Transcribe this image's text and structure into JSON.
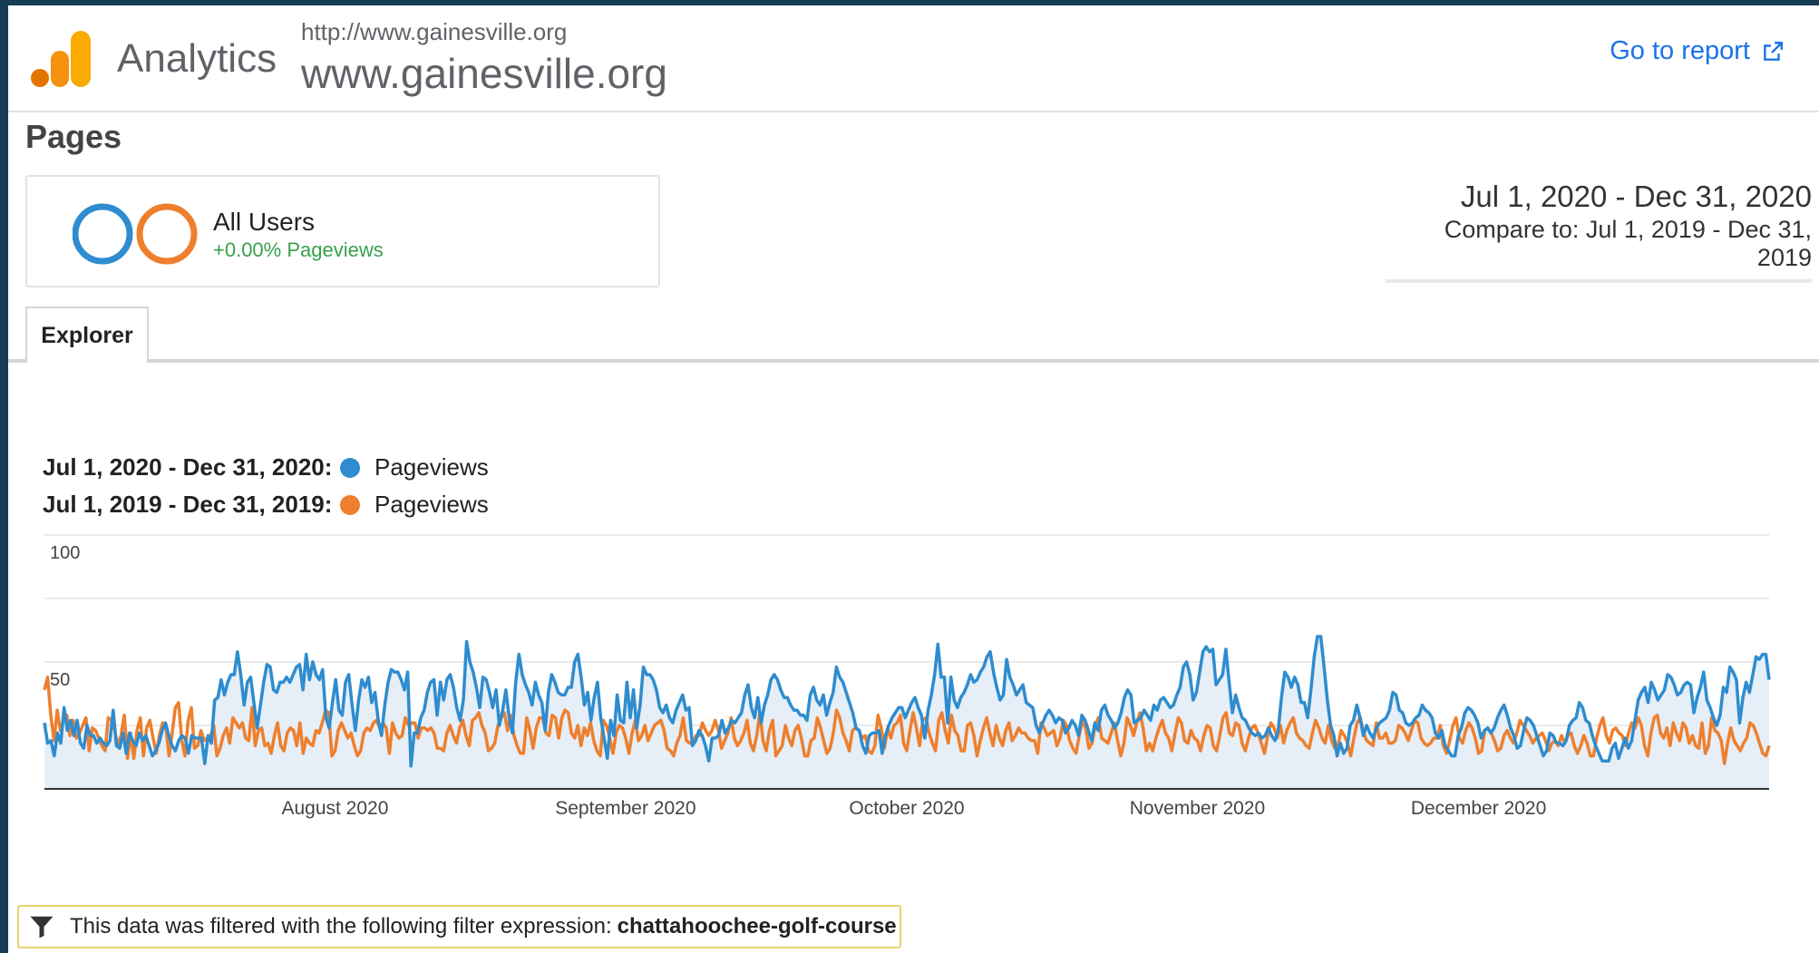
{
  "header": {
    "product": "Analytics",
    "property_url": "http://www.gainesville.org",
    "property_name": "www.gainesville.org",
    "go_to_report": "Go to report"
  },
  "page_title": "Pages",
  "segment": {
    "name": "All Users",
    "change": "+0.00% Pageviews"
  },
  "date_range": {
    "primary": "Jul 1, 2020 - Dec 31, 2020",
    "compare": "Compare to: Jul 1, 2019 - Dec 31, 2019"
  },
  "tabs": [
    {
      "label": "Explorer"
    }
  ],
  "legend": [
    {
      "range": "Jul 1, 2020 - Dec 31, 2020:",
      "metric": "Pageviews",
      "color": "#2e8ccf"
    },
    {
      "range": "Jul 1, 2019 - Dec 31, 2019:",
      "metric": "Pageviews",
      "color": "#ee7f2d"
    }
  ],
  "colors": {
    "current": "#2e8ccf",
    "compare": "#ee7f2d",
    "fill": "#e6eef7",
    "logo_dark": "#e37400",
    "logo_light": "#f9ab00"
  },
  "filter": {
    "text": "This data was filtered with the following filter expression:",
    "expression": "chattahoochee-golf-course"
  },
  "chart_data": {
    "type": "line",
    "title": "",
    "xlabel": "",
    "ylabel": "",
    "ylim": [
      0,
      100
    ],
    "y_ticks": [
      "100",
      "50"
    ],
    "x_tick_labels": [
      "August 2020",
      "September 2020",
      "October 2020",
      "November 2020",
      "December 2020"
    ],
    "x_tick_days": [
      31,
      62,
      92,
      123,
      153
    ],
    "grid": true,
    "series": [
      {
        "name": "Pageviews",
        "values": [
          26,
          18,
          19,
          13,
          22,
          18,
          32,
          23,
          27,
          21,
          27,
          18,
          16,
          25,
          21,
          21,
          18,
          20,
          18,
          17,
          19,
          31,
          17,
          16,
          22,
          14,
          22,
          19,
          17,
          22,
          19,
          21,
          17,
          13,
          15,
          18,
          23,
          26,
          21,
          17,
          15,
          19,
          21,
          20,
          14,
          21,
          20,
          20,
          20,
          10,
          21,
          18,
          35,
          36,
          43,
          37,
          42,
          45,
          45,
          54,
          45,
          33,
          42,
          44,
          34,
          24,
          33,
          42,
          49,
          48,
          39,
          38,
          42,
          42,
          44,
          42,
          45,
          48,
          49,
          39,
          53,
          43,
          50,
          45,
          43,
          47,
          28,
          24,
          34,
          43,
          31,
          29,
          42,
          45,
          33,
          23,
          35,
          43,
          40,
          44,
          34,
          38,
          27,
          21,
          33,
          42,
          47,
          46,
          46,
          43,
          39,
          46,
          9,
          22,
          22,
          28,
          31,
          38,
          42,
          43,
          29,
          42,
          35,
          43,
          45,
          40,
          32,
          27,
          35,
          58,
          50,
          46,
          40,
          32,
          44,
          43,
          38,
          32,
          39,
          25,
          31,
          39,
          28,
          22,
          42,
          53,
          45,
          41,
          38,
          33,
          42,
          37,
          34,
          23,
          38,
          45,
          42,
          38,
          37,
          37,
          40,
          40,
          50,
          53,
          44,
          33,
          38,
          27,
          36,
          42,
          28,
          20,
          12,
          27,
          21,
          37,
          27,
          26,
          42,
          28,
          39,
          24,
          33,
          48,
          45,
          45,
          43,
          39,
          32,
          30,
          33,
          28,
          26,
          31,
          34,
          37,
          31,
          32,
          17,
          19,
          23,
          21,
          17,
          11,
          20,
          20,
          21,
          27,
          22,
          24,
          27,
          26,
          28,
          30,
          37,
          41,
          32,
          28,
          36,
          26,
          33,
          37,
          43,
          45,
          43,
          39,
          36,
          36,
          33,
          31,
          31,
          29,
          29,
          27,
          37,
          40,
          35,
          33,
          37,
          29,
          34,
          38,
          48,
          44,
          42,
          38,
          34,
          30,
          24,
          23,
          17,
          14,
          21,
          22,
          22,
          23,
          14,
          21,
          25,
          28,
          30,
          32,
          32,
          28,
          31,
          34,
          36,
          32,
          29,
          20,
          31,
          37,
          45,
          57,
          44,
          44,
          26,
          44,
          35,
          32,
          36,
          38,
          41,
          45,
          42,
          43,
          46,
          48,
          52,
          54,
          46,
          40,
          35,
          37,
          51,
          44,
          41,
          37,
          39,
          41,
          34,
          33,
          32,
          25,
          22,
          26,
          29,
          31,
          29,
          26,
          28,
          27,
          22,
          24,
          27,
          25,
          21,
          29,
          27,
          23,
          19,
          26,
          23,
          31,
          33,
          29,
          27,
          24,
          26,
          30,
          36,
          39,
          37,
          26,
          27,
          28,
          31,
          29,
          27,
          33,
          31,
          35,
          36,
          34,
          32,
          33,
          37,
          40,
          48,
          50,
          45,
          35,
          38,
          46,
          54,
          56,
          54,
          55,
          41,
          43,
          45,
          55,
          42,
          30,
          37,
          32,
          28,
          27,
          24,
          22,
          21,
          22,
          20,
          21,
          24,
          21,
          19,
          23,
          36,
          46,
          44,
          40,
          44,
          41,
          34,
          34,
          28,
          39,
          52,
          60,
          60,
          48,
          35,
          25,
          21,
          13,
          18,
          14,
          16,
          25,
          27,
          33,
          28,
          21,
          25,
          22,
          20,
          24,
          26,
          27,
          28,
          31,
          38,
          37,
          31,
          30,
          26,
          25,
          26,
          28,
          29,
          33,
          31,
          30,
          28,
          22,
          20,
          23,
          17,
          15,
          13,
          13,
          21,
          24,
          30,
          32,
          31,
          29,
          26,
          20,
          23,
          24,
          22,
          24,
          28,
          31,
          33,
          29,
          24,
          21,
          16,
          17,
          23,
          28,
          27,
          25,
          21,
          17,
          13,
          15,
          22,
          21,
          18,
          18,
          17,
          19,
          25,
          27,
          28,
          34,
          32,
          27,
          26,
          21,
          17,
          14,
          11,
          11,
          11,
          16,
          18,
          12,
          16,
          20,
          16,
          19,
          27,
          35,
          38,
          40,
          34,
          42,
          39,
          35,
          37,
          39,
          45,
          44,
          41,
          37,
          38,
          41,
          42,
          41,
          30,
          36,
          40,
          46,
          35,
          32,
          28,
          25,
          29,
          40,
          38,
          48,
          46,
          43,
          26,
          36,
          42,
          38,
          45,
          52,
          51,
          53,
          53,
          43
        ]
      },
      {
        "name": "Pageviews",
        "values": [
          39,
          44,
          29,
          19,
          31,
          23,
          27,
          29,
          21,
          27,
          20,
          22,
          25,
          28,
          15,
          24,
          23,
          20,
          17,
          15,
          28,
          27,
          23,
          17,
          21,
          29,
          12,
          22,
          12,
          23,
          28,
          13,
          24,
          27,
          20,
          14,
          21,
          26,
          25,
          13,
          22,
          32,
          34,
          19,
          13,
          27,
          32,
          16,
          17,
          23,
          19,
          20,
          21,
          25,
          13,
          16,
          21,
          24,
          18,
          28,
          26,
          24,
          26,
          20,
          19,
          32,
          17,
          23,
          24,
          17,
          18,
          14,
          21,
          26,
          17,
          15,
          22,
          24,
          23,
          17,
          26,
          14,
          20,
          18,
          17,
          23,
          22,
          26,
          31,
          30,
          13,
          15,
          23,
          26,
          23,
          20,
          22,
          17,
          13,
          15,
          22,
          24,
          23,
          26,
          27,
          24,
          26,
          24,
          14,
          26,
          22,
          20,
          21,
          28,
          25,
          26,
          26,
          20,
          24,
          24,
          23,
          24,
          22,
          16,
          16,
          15,
          22,
          25,
          21,
          18,
          24,
          27,
          21,
          17,
          27,
          28,
          30,
          25,
          22,
          15,
          16,
          18,
          25,
          28,
          30,
          23,
          29,
          21,
          17,
          14,
          14,
          28,
          23,
          16,
          24,
          28,
          28,
          22,
          21,
          29,
          28,
          20,
          28,
          31,
          30,
          22,
          20,
          25,
          17,
          24,
          21,
          26,
          19,
          15,
          13,
          27,
          25,
          20,
          14,
          22,
          25,
          24,
          20,
          14,
          22,
          27,
          19,
          21,
          25,
          19,
          22,
          25,
          26,
          27,
          23,
          16,
          15,
          13,
          18,
          21,
          28,
          19,
          18,
          18,
          21,
          21,
          26,
          23,
          21,
          23,
          27,
          23,
          16,
          19,
          22,
          28,
          20,
          17,
          19,
          22,
          27,
          18,
          15,
          21,
          30,
          19,
          15,
          23,
          27,
          13,
          15,
          17,
          25,
          20,
          17,
          23,
          25,
          20,
          13,
          13,
          19,
          20,
          28,
          24,
          19,
          14,
          16,
          22,
          31,
          28,
          22,
          19,
          15,
          23,
          24,
          23,
          20,
          21,
          15,
          14,
          17,
          29,
          24,
          16,
          24,
          20,
          25,
          26,
          29,
          18,
          15,
          23,
          30,
          24,
          17,
          27,
          28,
          22,
          18,
          15,
          27,
          30,
          23,
          18,
          29,
          23,
          21,
          15,
          15,
          25,
          26,
          21,
          13,
          19,
          24,
          28,
          22,
          17,
          25,
          20,
          17,
          23,
          26,
          19,
          21,
          24,
          22,
          22,
          20,
          19,
          19,
          14,
          26,
          24,
          21,
          22,
          23,
          17,
          20,
          27,
          25,
          19,
          16,
          14,
          21,
          27,
          24,
          16,
          18,
          25,
          28,
          20,
          19,
          18,
          22,
          26,
          19,
          13,
          18,
          28,
          25,
          21,
          26,
          30,
          24,
          15,
          18,
          15,
          20,
          24,
          27,
          22,
          20,
          15,
          22,
          28,
          26,
          19,
          18,
          23,
          20,
          19,
          15,
          21,
          25,
          24,
          17,
          15,
          21,
          28,
          30,
          22,
          21,
          26,
          25,
          18,
          15,
          20,
          24,
          25,
          22,
          18,
          14,
          21,
          26,
          24,
          20,
          25,
          18,
          23,
          26,
          28,
          22,
          20,
          19,
          17,
          16,
          22,
          27,
          24,
          20,
          18,
          25,
          19,
          16,
          17,
          23,
          21,
          18,
          13,
          20,
          26,
          28,
          22,
          19,
          18,
          17,
          26,
          20,
          20,
          22,
          18,
          18,
          19,
          25,
          24,
          22,
          19,
          23,
          27,
          26,
          20,
          18,
          17,
          18,
          20,
          20,
          25,
          17,
          14,
          19,
          25,
          28,
          20,
          18,
          23,
          26,
          24,
          20,
          14,
          15,
          23,
          24,
          22,
          19,
          15,
          16,
          21,
          23,
          20,
          18,
          22,
          27,
          25,
          23,
          21,
          18,
          20,
          21,
          22,
          19,
          15,
          18,
          19,
          17,
          21,
          18,
          21,
          22,
          17,
          14,
          17,
          21,
          18,
          13,
          13,
          20,
          25,
          28,
          21,
          18,
          23,
          24,
          22,
          21,
          17,
          22,
          26,
          24,
          28,
          25,
          17,
          13,
          22,
          28,
          29,
          22,
          20,
          24,
          17,
          26,
          22,
          19,
          26,
          24,
          18,
          21,
          17,
          16,
          26,
          14,
          17,
          28,
          23,
          22,
          19,
          10,
          18,
          24,
          19,
          17,
          15,
          18,
          20,
          26,
          25,
          22,
          18,
          14,
          13,
          17
        ]
      }
    ]
  }
}
